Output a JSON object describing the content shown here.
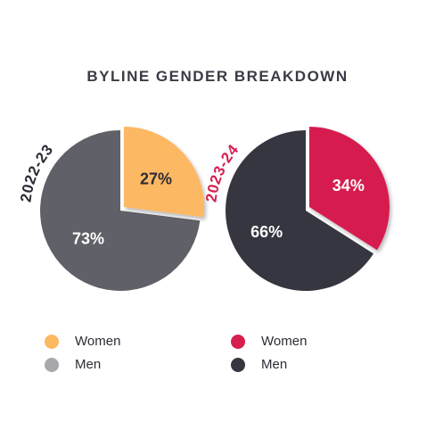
{
  "chart_data": {
    "type": "pie",
    "title": "BYLINE GENDER BREAKDOWN",
    "charts": [
      {
        "period_label": "2022-23",
        "slices": [
          {
            "label": "Women",
            "value": 27,
            "value_label": "27%",
            "color": "#fdb863"
          },
          {
            "label": "Men",
            "value": 73,
            "value_label": "73%",
            "color": "#606068"
          }
        ],
        "label_color": "#2c2d35",
        "legend": [
          {
            "label": "Women",
            "color": "#fdb863"
          },
          {
            "label": "Men",
            "color": "#a8a8ab"
          }
        ]
      },
      {
        "period_label": "2023-24",
        "slices": [
          {
            "label": "Women",
            "value": 34,
            "value_label": "34%",
            "color": "#d61f4f"
          },
          {
            "label": "Men",
            "value": 66,
            "value_label": "66%",
            "color": "#353640"
          }
        ],
        "label_color": "#d61f4f",
        "legend": [
          {
            "label": "Women",
            "color": "#d61f4f"
          },
          {
            "label": "Men",
            "color": "#353640"
          }
        ]
      }
    ]
  }
}
